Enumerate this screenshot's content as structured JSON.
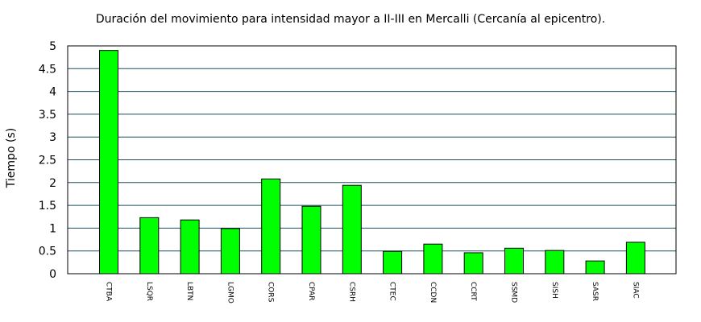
{
  "chart_data": {
    "type": "bar",
    "title": "Duración del movimiento para intensidad mayor a II-III en Mercalli (Cercanía al epicentro).",
    "xlabel": "",
    "ylabel": "Tiempo (s)",
    "ylim": [
      0,
      5
    ],
    "yticks": [
      "0",
      "0.5",
      "1",
      "1.5",
      "2",
      "2.5",
      "3",
      "3.5",
      "4",
      "4.5",
      "5"
    ],
    "grid": true,
    "legend": "none",
    "bar_color": "#00ff00",
    "grid_color": "#1f4f5f",
    "categories": [
      "CTBA",
      "LSQR",
      "LBTN",
      "LGMO",
      "CORS",
      "CPAR",
      "CSRH",
      "CTEC",
      "CCDN",
      "CCRT",
      "SSMD",
      "SISH",
      "SASR",
      "SIAC"
    ],
    "values": [
      4.9,
      1.23,
      1.18,
      0.99,
      2.08,
      1.48,
      1.94,
      0.49,
      0.65,
      0.46,
      0.56,
      0.51,
      0.28,
      0.69
    ]
  }
}
